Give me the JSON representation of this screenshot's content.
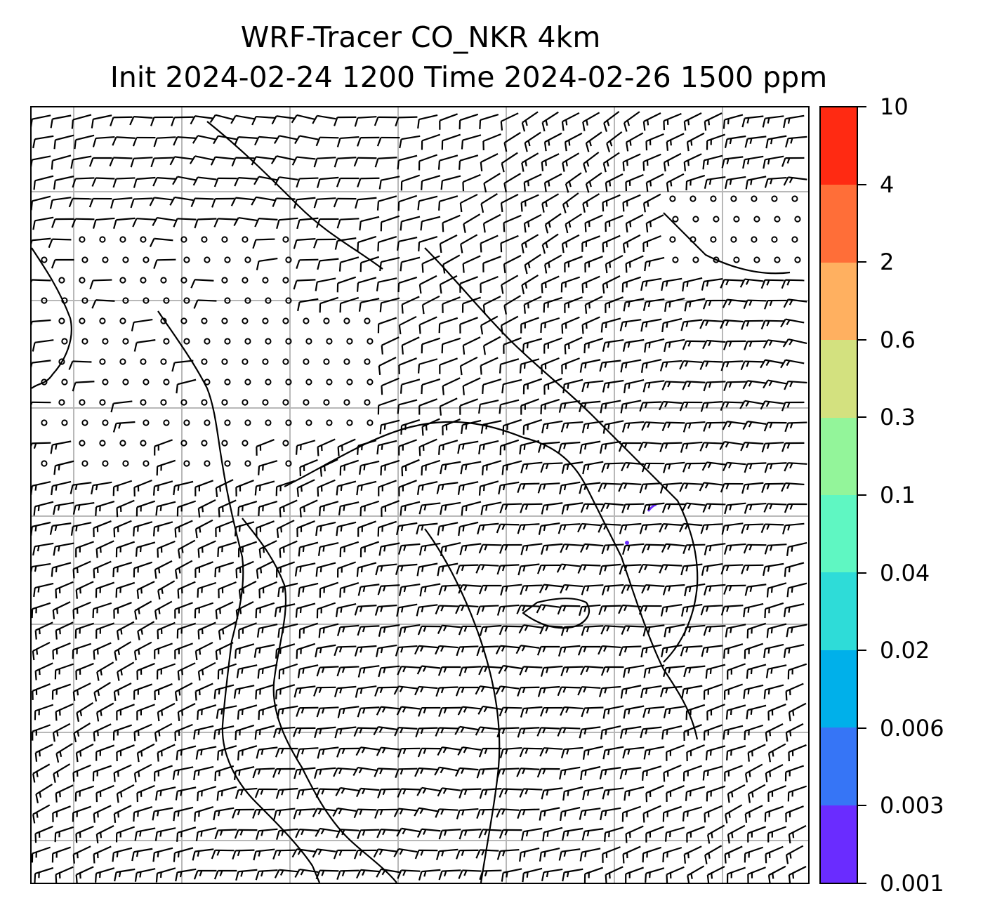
{
  "title": {
    "line1": "WRF-Tracer CO_NKR 4km",
    "line2": "Init 2024-02-24 1200 Time 2024-02-26 1500 ppm"
  },
  "colorbar": {
    "ticks": [
      "10",
      "4",
      "2",
      "0.6",
      "0.3",
      "0.1",
      "0.04",
      "0.02",
      "0.006",
      "0.003",
      "0.001"
    ],
    "colors": [
      "#ff2a12",
      "#ff6e38",
      "#ffb060",
      "#d3e17f",
      "#93f59a",
      "#5ff7c2",
      "#2edcd8",
      "#00b0ea",
      "#3675f6",
      "#6a2cff"
    ]
  },
  "map": {
    "gridlines": "on",
    "barb_color": "#000000",
    "coast_color": "#000000",
    "tracer_color": "#6a2cff"
  }
}
